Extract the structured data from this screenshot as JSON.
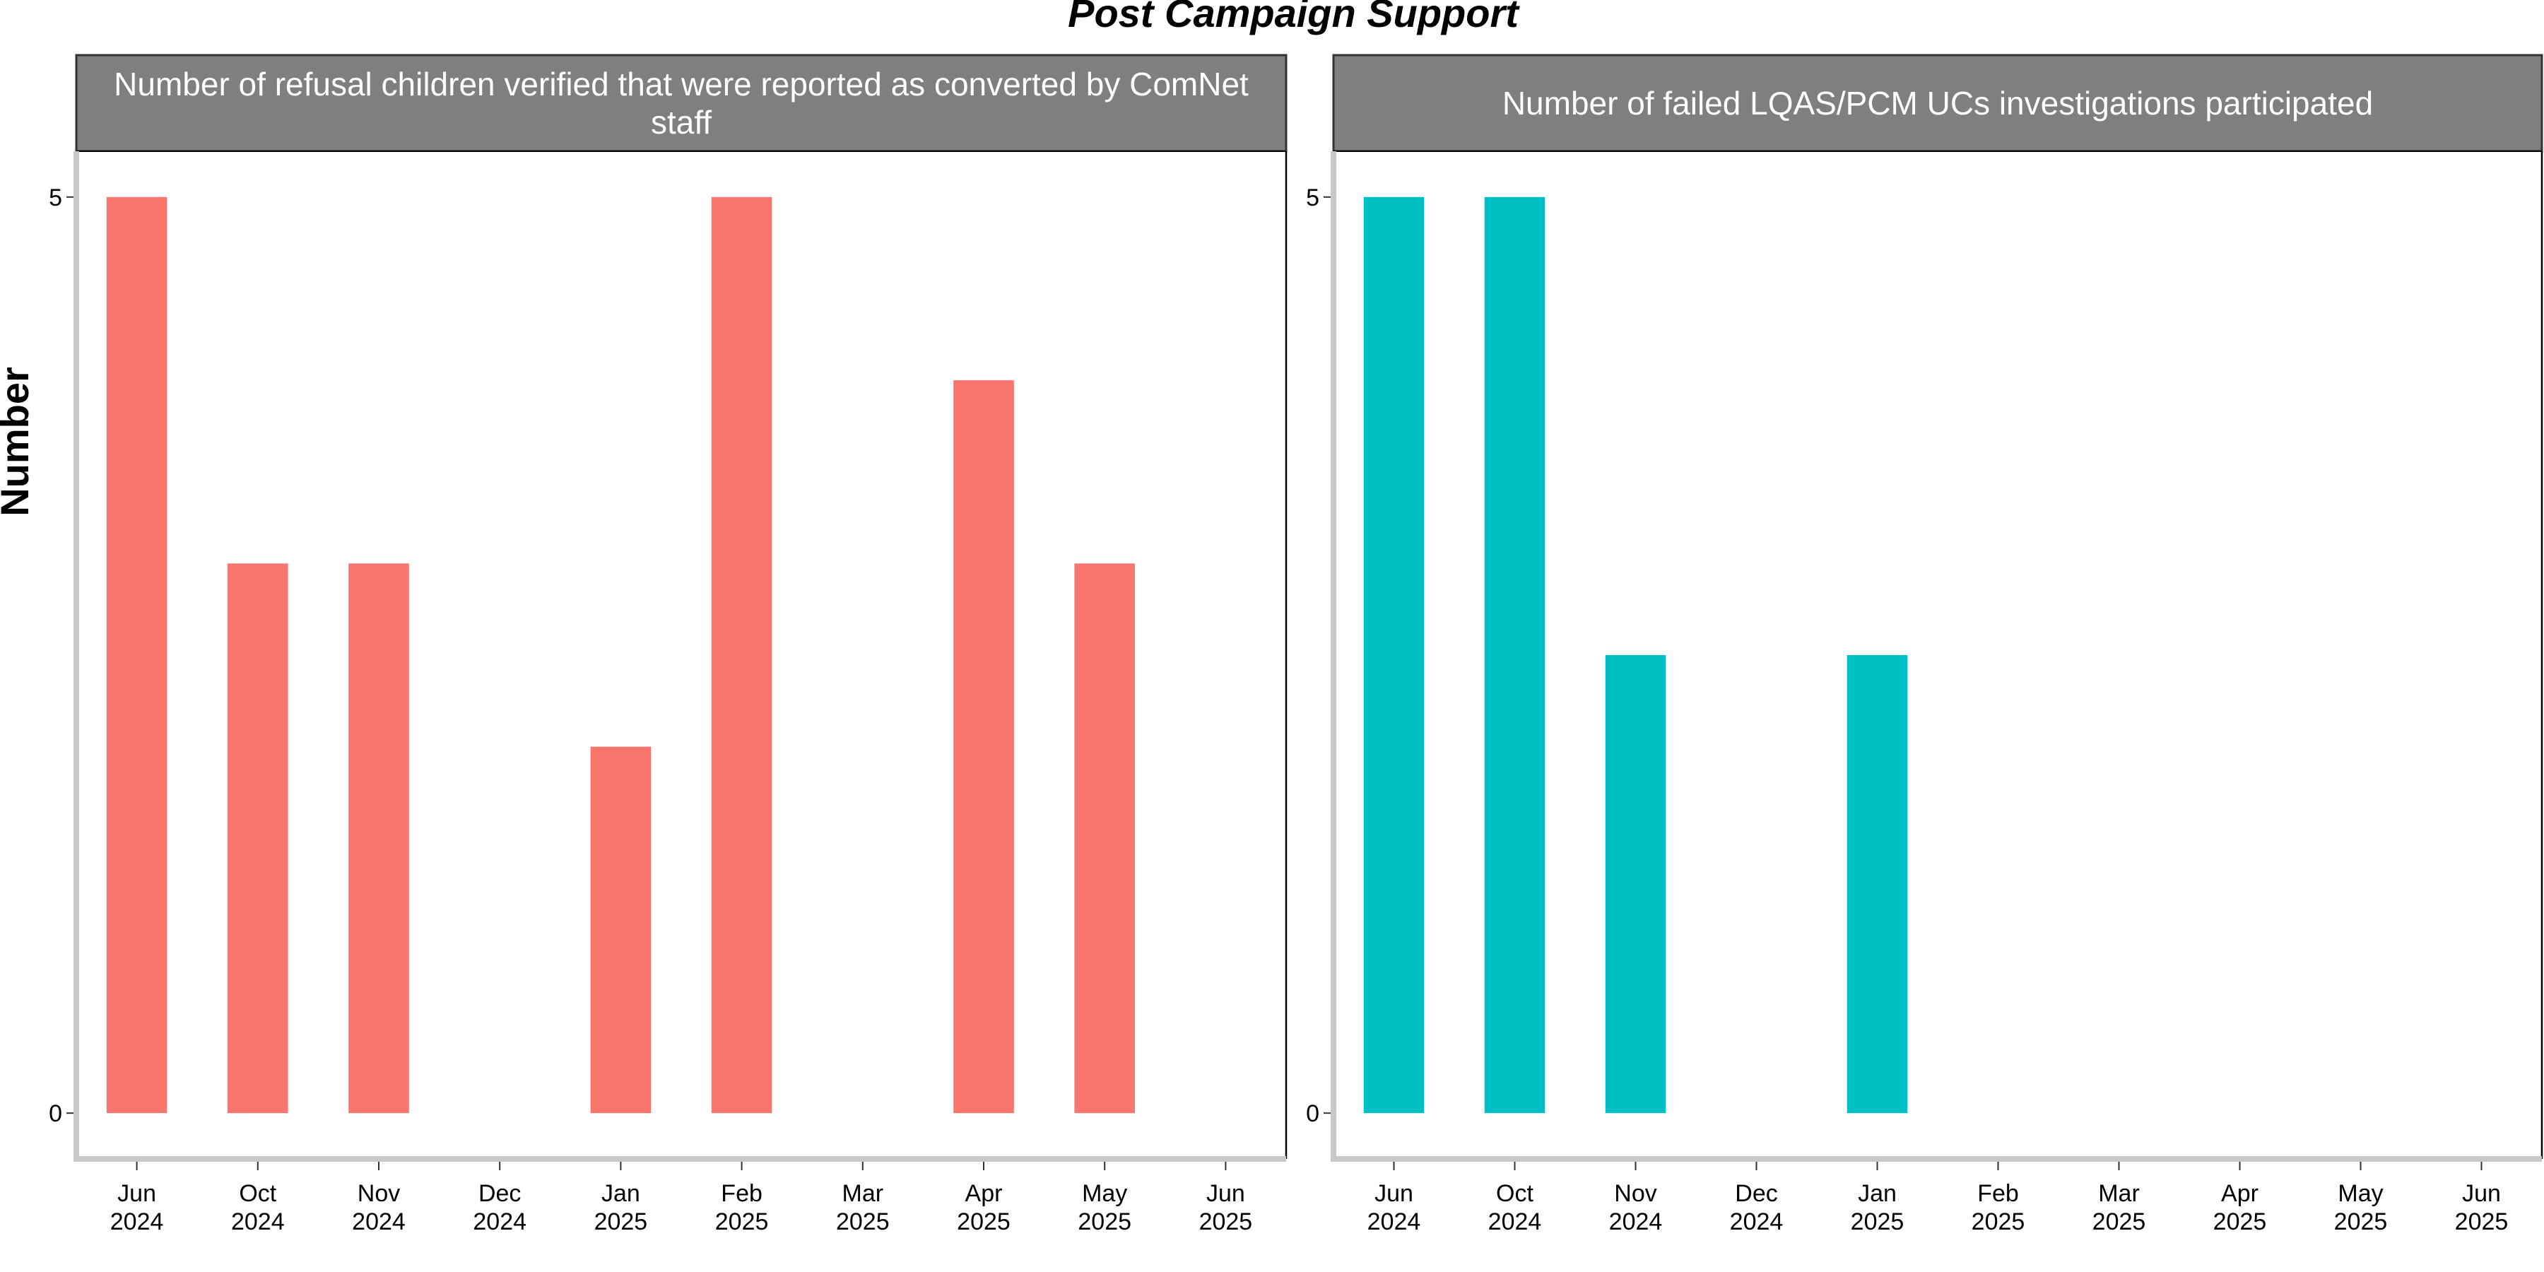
{
  "chart_data": {
    "type": "bar",
    "title": "Post Campaign Support",
    "ylabel": "Number",
    "xlabel": "",
    "categories": [
      "Jun\n2024",
      "Oct\n2024",
      "Nov\n2024",
      "Dec\n2024",
      "Jan\n2025",
      "Feb\n2025",
      "Mar\n2025",
      "Apr\n2025",
      "May\n2025",
      "Jun\n2025"
    ],
    "ylim": [
      -0.25,
      5.25
    ],
    "yticks": [
      0,
      5
    ],
    "grid": false,
    "legend": "none",
    "panels": [
      {
        "strip_label": "Number of refusal children verified that were reported as converted by ComNet\nstaff",
        "color": "#F8766D",
        "values": [
          5,
          3,
          3,
          null,
          2,
          5,
          null,
          4,
          3,
          null
        ]
      },
      {
        "strip_label": "Number of failed LQAS/PCM UCs investigations participated",
        "color": "#00BFC4",
        "values": [
          5,
          5,
          2.5,
          null,
          2.5,
          null,
          null,
          null,
          null,
          null
        ]
      }
    ]
  }
}
